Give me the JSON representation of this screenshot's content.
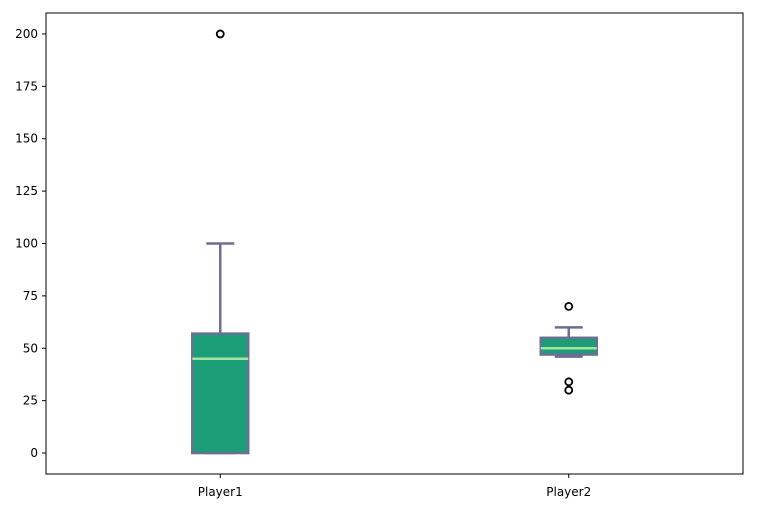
{
  "chart_data": {
    "type": "box",
    "title": "",
    "xlabel": "",
    "ylabel": "",
    "categories": [
      "Player1",
      "Player2"
    ],
    "ylim": [
      -10,
      210
    ],
    "yticks": [
      0,
      25,
      50,
      75,
      100,
      125,
      150,
      175,
      200
    ],
    "series": [
      {
        "category": "Player1",
        "whisker_low": 0,
        "q1": 0,
        "median": 45,
        "q3": 57,
        "whisker_high": 100,
        "outliers": [
          200
        ]
      },
      {
        "category": "Player2",
        "whisker_low": 46,
        "q1": 47,
        "median": 50,
        "q3": 55,
        "whisker_high": 60,
        "outliers": [
          70,
          34,
          30
        ]
      }
    ],
    "colors": {
      "box_fill": "#1b9e77",
      "box_edge": "#6b6f96",
      "median": "#a6e3a1",
      "whisker": "#6b6f96",
      "outlier": "#000000"
    },
    "grid": false,
    "legend": "none"
  }
}
